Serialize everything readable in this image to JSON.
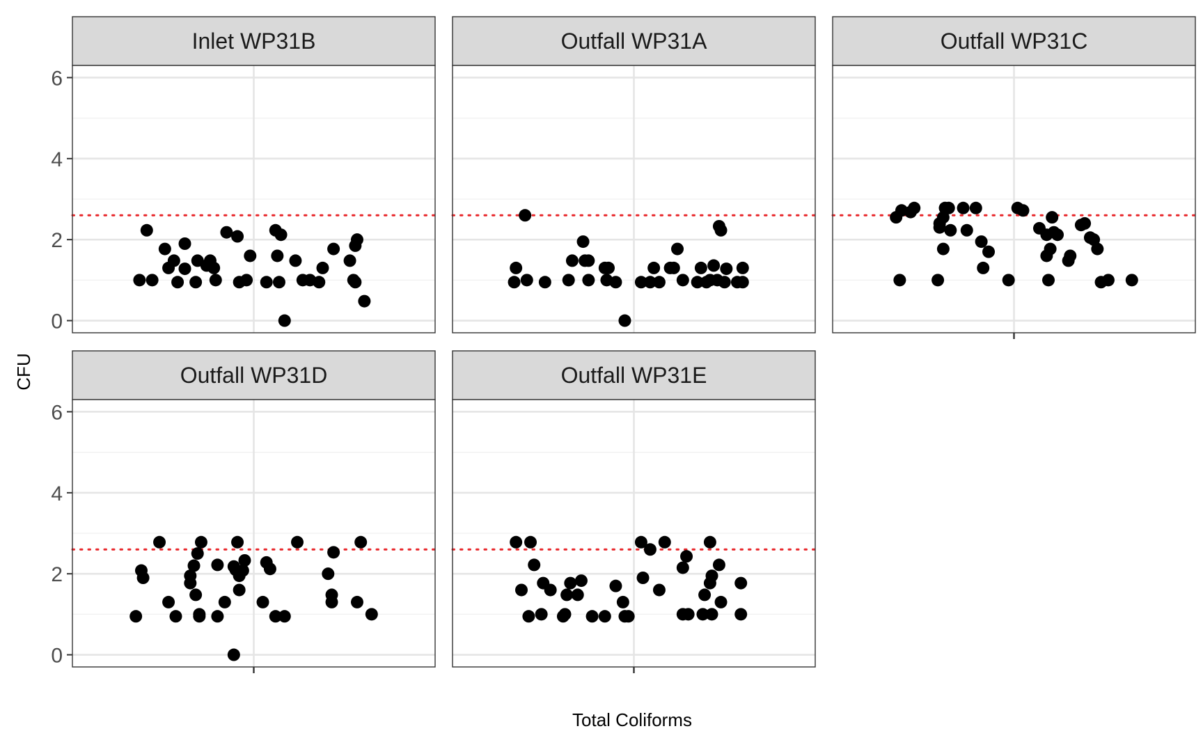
{
  "chart_data": {
    "type": "scatter",
    "title": "",
    "xlabel": "Total Coliforms",
    "ylabel": "CFU",
    "ylim": [
      -0.3,
      6.3
    ],
    "yticks": [
      0,
      2,
      4,
      6
    ],
    "xlim": [
      -1,
      1
    ],
    "grid": true,
    "reference_line": {
      "y": 2.6,
      "color": "#e8262a",
      "style": "dotted"
    },
    "point_color": "#000000",
    "panels": [
      {
        "name": "Inlet WP31B",
        "points": [
          [
            -0.63,
            1.0
          ],
          [
            -0.59,
            2.23
          ],
          [
            -0.56,
            1.0
          ],
          [
            -0.49,
            1.77
          ],
          [
            -0.47,
            1.3
          ],
          [
            -0.44,
            1.48
          ],
          [
            -0.42,
            0.95
          ],
          [
            -0.38,
            1.9
          ],
          [
            -0.38,
            1.28
          ],
          [
            -0.32,
            0.95
          ],
          [
            -0.31,
            1.48
          ],
          [
            -0.26,
            1.36
          ],
          [
            -0.24,
            1.48
          ],
          [
            -0.22,
            1.3
          ],
          [
            -0.21,
            1.0
          ],
          [
            -0.15,
            2.18
          ],
          [
            -0.09,
            2.08
          ],
          [
            -0.08,
            0.95
          ],
          [
            -0.04,
            1.0
          ],
          [
            -0.02,
            1.6
          ],
          [
            0.07,
            0.95
          ],
          [
            0.12,
            2.23
          ],
          [
            0.13,
            1.6
          ],
          [
            0.14,
            0.95
          ],
          [
            0.15,
            2.12
          ],
          [
            0.17,
            0.0
          ],
          [
            0.23,
            1.48
          ],
          [
            0.27,
            1.0
          ],
          [
            0.31,
            1.0
          ],
          [
            0.36,
            0.95
          ],
          [
            0.38,
            1.3
          ],
          [
            0.44,
            1.77
          ],
          [
            0.53,
            1.48
          ],
          [
            0.55,
            1.0
          ],
          [
            0.56,
            1.85
          ],
          [
            0.56,
            0.95
          ],
          [
            0.57,
            2.0
          ],
          [
            0.61,
            0.48
          ]
        ]
      },
      {
        "name": "Outfall WP31A",
        "points": [
          [
            -0.66,
            0.95
          ],
          [
            -0.65,
            1.3
          ],
          [
            -0.6,
            2.6
          ],
          [
            -0.59,
            1.0
          ],
          [
            -0.49,
            0.95
          ],
          [
            -0.36,
            1.0
          ],
          [
            -0.34,
            1.48
          ],
          [
            -0.28,
            1.95
          ],
          [
            -0.27,
            1.48
          ],
          [
            -0.25,
            1.48
          ],
          [
            -0.25,
            1.0
          ],
          [
            -0.16,
            1.3
          ],
          [
            -0.15,
            1.0
          ],
          [
            -0.14,
            1.3
          ],
          [
            -0.1,
            0.95
          ],
          [
            -0.05,
            0.0
          ],
          [
            0.04,
            0.95
          ],
          [
            0.09,
            0.95
          ],
          [
            0.11,
            1.3
          ],
          [
            0.14,
            0.95
          ],
          [
            0.2,
            1.3
          ],
          [
            0.22,
            1.3
          ],
          [
            0.24,
            1.77
          ],
          [
            0.27,
            1.0
          ],
          [
            0.35,
            0.95
          ],
          [
            0.37,
            1.3
          ],
          [
            0.4,
            0.95
          ],
          [
            0.42,
            1.0
          ],
          [
            0.44,
            1.36
          ],
          [
            0.46,
            1.0
          ],
          [
            0.47,
            2.33
          ],
          [
            0.48,
            2.23
          ],
          [
            0.5,
            0.95
          ],
          [
            0.51,
            1.28
          ],
          [
            0.57,
            0.95
          ],
          [
            0.6,
            0.95
          ],
          [
            0.6,
            1.3
          ]
        ]
      },
      {
        "name": "Outfall WP31C",
        "points": [
          [
            -0.65,
            2.55
          ],
          [
            -0.63,
            1.0
          ],
          [
            -0.62,
            2.72
          ],
          [
            -0.57,
            2.68
          ],
          [
            -0.55,
            2.78
          ],
          [
            -0.42,
            1.0
          ],
          [
            -0.41,
            2.4
          ],
          [
            -0.41,
            2.3
          ],
          [
            -0.39,
            2.55
          ],
          [
            -0.39,
            1.77
          ],
          [
            -0.38,
            2.78
          ],
          [
            -0.36,
            2.78
          ],
          [
            -0.35,
            2.23
          ],
          [
            -0.28,
            2.78
          ],
          [
            -0.26,
            2.23
          ],
          [
            -0.21,
            2.78
          ],
          [
            -0.18,
            1.95
          ],
          [
            -0.17,
            1.3
          ],
          [
            -0.14,
            1.7
          ],
          [
            -0.03,
            1.0
          ],
          [
            0.02,
            2.78
          ],
          [
            0.05,
            2.72
          ],
          [
            0.14,
            2.28
          ],
          [
            0.18,
            1.6
          ],
          [
            0.18,
            2.12
          ],
          [
            0.19,
            1.0
          ],
          [
            0.2,
            1.77
          ],
          [
            0.21,
            2.55
          ],
          [
            0.22,
            2.18
          ],
          [
            0.24,
            2.12
          ],
          [
            0.3,
            1.48
          ],
          [
            0.31,
            1.6
          ],
          [
            0.37,
            2.36
          ],
          [
            0.39,
            2.4
          ],
          [
            0.42,
            2.05
          ],
          [
            0.44,
            2.0
          ],
          [
            0.46,
            1.77
          ],
          [
            0.48,
            0.95
          ],
          [
            0.52,
            1.0
          ],
          [
            0.65,
            1.0
          ]
        ]
      },
      {
        "name": "Outfall WP31D",
        "points": [
          [
            -0.65,
            0.95
          ],
          [
            -0.62,
            2.08
          ],
          [
            -0.61,
            1.9
          ],
          [
            -0.52,
            2.78
          ],
          [
            -0.47,
            1.3
          ],
          [
            -0.43,
            0.95
          ],
          [
            -0.35,
            1.77
          ],
          [
            -0.35,
            1.95
          ],
          [
            -0.33,
            2.2
          ],
          [
            -0.32,
            1.48
          ],
          [
            -0.31,
            2.5
          ],
          [
            -0.3,
            1.0
          ],
          [
            -0.3,
            0.95
          ],
          [
            -0.29,
            2.78
          ],
          [
            -0.2,
            0.95
          ],
          [
            -0.2,
            2.22
          ],
          [
            -0.16,
            1.3
          ],
          [
            -0.11,
            0.0
          ],
          [
            -0.11,
            2.18
          ],
          [
            -0.1,
            2.1
          ],
          [
            -0.09,
            2.78
          ],
          [
            -0.08,
            1.95
          ],
          [
            -0.08,
            1.6
          ],
          [
            -0.06,
            2.08
          ],
          [
            -0.05,
            2.33
          ],
          [
            0.05,
            1.3
          ],
          [
            0.07,
            2.28
          ],
          [
            0.09,
            2.12
          ],
          [
            0.12,
            0.95
          ],
          [
            0.17,
            0.95
          ],
          [
            0.24,
            2.78
          ],
          [
            0.41,
            2.0
          ],
          [
            0.43,
            1.48
          ],
          [
            0.44,
            2.53
          ],
          [
            0.43,
            1.3
          ],
          [
            0.57,
            1.3
          ],
          [
            0.59,
            2.78
          ],
          [
            0.65,
            1.0
          ]
        ]
      },
      {
        "name": "Outfall WP31E",
        "points": [
          [
            -0.65,
            2.78
          ],
          [
            -0.62,
            1.6
          ],
          [
            -0.58,
            0.95
          ],
          [
            -0.57,
            2.78
          ],
          [
            -0.55,
            2.22
          ],
          [
            -0.51,
            1.0
          ],
          [
            -0.5,
            1.77
          ],
          [
            -0.46,
            1.6
          ],
          [
            -0.39,
            0.95
          ],
          [
            -0.38,
            1.0
          ],
          [
            -0.37,
            1.48
          ],
          [
            -0.35,
            1.77
          ],
          [
            -0.31,
            1.48
          ],
          [
            -0.29,
            1.83
          ],
          [
            -0.23,
            0.95
          ],
          [
            -0.16,
            0.95
          ],
          [
            -0.1,
            1.7
          ],
          [
            -0.06,
            1.3
          ],
          [
            -0.05,
            0.95
          ],
          [
            -0.03,
            0.95
          ],
          [
            0.04,
            2.78
          ],
          [
            0.05,
            1.9
          ],
          [
            0.09,
            2.6
          ],
          [
            0.14,
            1.6
          ],
          [
            0.17,
            2.78
          ],
          [
            0.27,
            2.15
          ],
          [
            0.27,
            1.0
          ],
          [
            0.29,
            2.43
          ],
          [
            0.3,
            1.0
          ],
          [
            0.38,
            1.0
          ],
          [
            0.39,
            1.48
          ],
          [
            0.42,
            2.78
          ],
          [
            0.42,
            1.77
          ],
          [
            0.43,
            1.95
          ],
          [
            0.43,
            1.0
          ],
          [
            0.47,
            2.22
          ],
          [
            0.48,
            1.3
          ],
          [
            0.59,
            1.77
          ],
          [
            0.59,
            1.0
          ]
        ]
      }
    ]
  }
}
